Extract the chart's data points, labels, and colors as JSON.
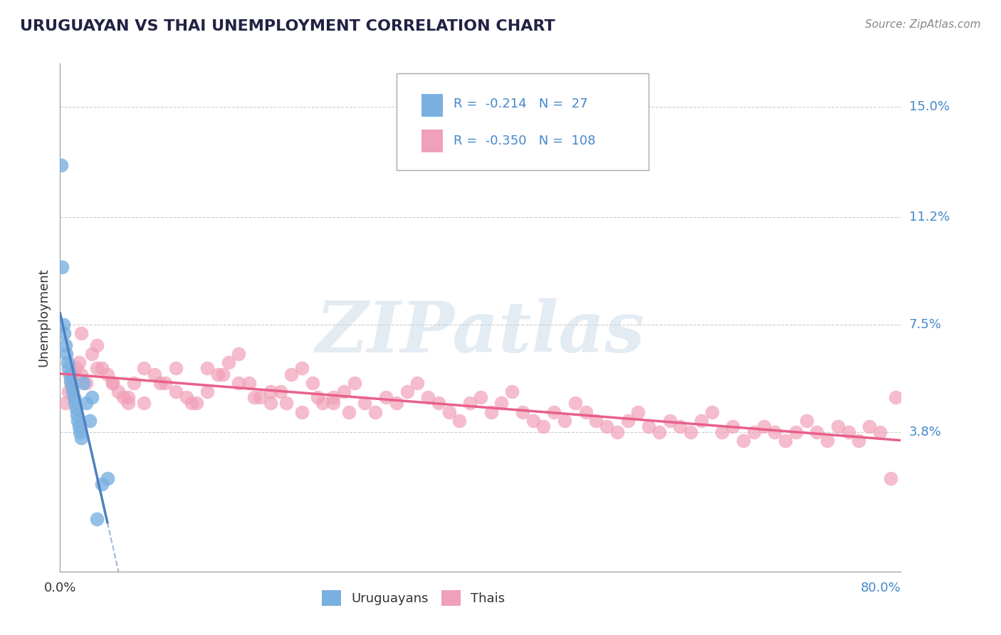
{
  "title": "URUGUAYAN VS THAI UNEMPLOYMENT CORRELATION CHART",
  "source_text": "Source: ZipAtlas.com",
  "xlabel": "",
  "ylabel": "Unemployment",
  "xlim": [
    0.0,
    0.8
  ],
  "ylim": [
    -0.01,
    0.165
  ],
  "yticks": [
    0.038,
    0.075,
    0.112,
    0.15
  ],
  "ytick_labels": [
    "3.8%",
    "7.5%",
    "11.2%",
    "15.0%"
  ],
  "xticks": [
    0.0,
    0.16,
    0.32,
    0.48,
    0.64,
    0.8
  ],
  "xtick_labels": [
    "0.0%",
    "",
    "",
    "",
    "",
    "80.0%"
  ],
  "background_color": "#ffffff",
  "grid_color": "#cccccc",
  "watermark_text": "ZIPatlas",
  "watermark_color": "#c8d8e8",
  "uruguayan_color": "#7ab0e0",
  "thai_color": "#f0a0b8",
  "legend_R1": "-0.214",
  "legend_N1": "27",
  "legend_R2": "-0.350",
  "legend_N2": "108",
  "uruguayan_x": [
    0.001,
    0.002,
    0.003,
    0.004,
    0.005,
    0.006,
    0.007,
    0.008,
    0.009,
    0.01,
    0.011,
    0.012,
    0.013,
    0.014,
    0.015,
    0.016,
    0.017,
    0.018,
    0.019,
    0.02,
    0.022,
    0.025,
    0.028,
    0.03,
    0.035,
    0.04,
    0.045
  ],
  "uruguayan_y": [
    0.13,
    0.095,
    0.075,
    0.072,
    0.068,
    0.065,
    0.062,
    0.06,
    0.058,
    0.056,
    0.054,
    0.052,
    0.05,
    0.048,
    0.046,
    0.044,
    0.042,
    0.04,
    0.038,
    0.036,
    0.055,
    0.048,
    0.042,
    0.05,
    0.008,
    0.02,
    0.022
  ],
  "thai_x": [
    0.005,
    0.008,
    0.01,
    0.012,
    0.015,
    0.018,
    0.02,
    0.025,
    0.03,
    0.035,
    0.04,
    0.045,
    0.05,
    0.055,
    0.06,
    0.065,
    0.07,
    0.08,
    0.09,
    0.1,
    0.11,
    0.12,
    0.13,
    0.14,
    0.15,
    0.16,
    0.17,
    0.18,
    0.19,
    0.2,
    0.21,
    0.22,
    0.23,
    0.24,
    0.25,
    0.26,
    0.27,
    0.28,
    0.29,
    0.3,
    0.31,
    0.32,
    0.33,
    0.34,
    0.35,
    0.36,
    0.37,
    0.38,
    0.39,
    0.4,
    0.41,
    0.42,
    0.43,
    0.44,
    0.45,
    0.46,
    0.47,
    0.48,
    0.49,
    0.5,
    0.51,
    0.52,
    0.53,
    0.54,
    0.55,
    0.56,
    0.57,
    0.58,
    0.59,
    0.6,
    0.61,
    0.62,
    0.63,
    0.64,
    0.65,
    0.66,
    0.67,
    0.68,
    0.69,
    0.7,
    0.71,
    0.72,
    0.73,
    0.74,
    0.75,
    0.76,
    0.77,
    0.78,
    0.79,
    0.795,
    0.02,
    0.035,
    0.05,
    0.065,
    0.08,
    0.095,
    0.11,
    0.125,
    0.14,
    0.155,
    0.17,
    0.185,
    0.2,
    0.215,
    0.23,
    0.245,
    0.26,
    0.275
  ],
  "thai_y": [
    0.048,
    0.052,
    0.055,
    0.058,
    0.06,
    0.062,
    0.058,
    0.055,
    0.065,
    0.068,
    0.06,
    0.058,
    0.055,
    0.052,
    0.05,
    0.048,
    0.055,
    0.06,
    0.058,
    0.055,
    0.052,
    0.05,
    0.048,
    0.06,
    0.058,
    0.062,
    0.065,
    0.055,
    0.05,
    0.048,
    0.052,
    0.058,
    0.06,
    0.055,
    0.048,
    0.05,
    0.052,
    0.055,
    0.048,
    0.045,
    0.05,
    0.048,
    0.052,
    0.055,
    0.05,
    0.048,
    0.045,
    0.042,
    0.048,
    0.05,
    0.045,
    0.048,
    0.052,
    0.045,
    0.042,
    0.04,
    0.045,
    0.042,
    0.048,
    0.045,
    0.042,
    0.04,
    0.038,
    0.042,
    0.045,
    0.04,
    0.038,
    0.042,
    0.04,
    0.038,
    0.042,
    0.045,
    0.038,
    0.04,
    0.035,
    0.038,
    0.04,
    0.038,
    0.035,
    0.038,
    0.042,
    0.038,
    0.035,
    0.04,
    0.038,
    0.035,
    0.04,
    0.038,
    0.022,
    0.05,
    0.072,
    0.06,
    0.055,
    0.05,
    0.048,
    0.055,
    0.06,
    0.048,
    0.052,
    0.058,
    0.055,
    0.05,
    0.052,
    0.048,
    0.045,
    0.05,
    0.048,
    0.045
  ]
}
